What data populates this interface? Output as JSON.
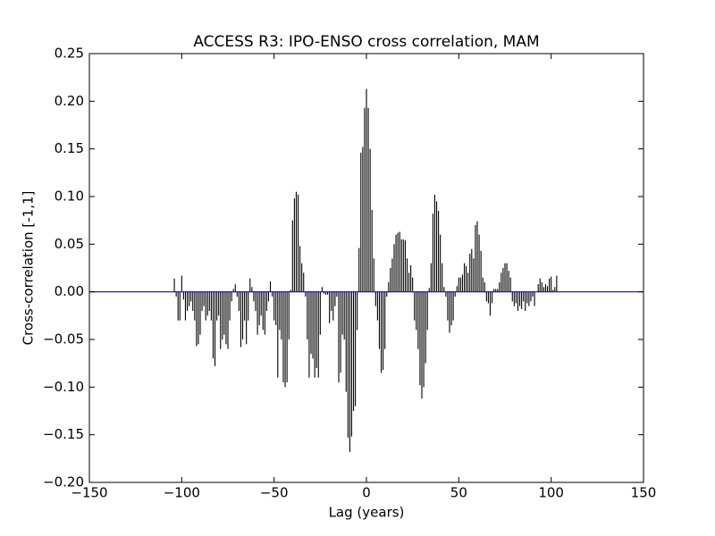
{
  "chart_data": {
    "type": "xcorr",
    "title": "ACCESS R3: IPO-ENSO cross correlation, MAM",
    "x_label": "Lag (years)",
    "y_label": "Cross-correlation [-1,1]",
    "x": [
      -104,
      -103,
      -102,
      -101,
      -100,
      -99,
      -98,
      -97,
      -96,
      -95,
      -94,
      -93,
      -92,
      -91,
      -90,
      -89,
      -88,
      -87,
      -86,
      -85,
      -84,
      -83,
      -82,
      -81,
      -80,
      -79,
      -78,
      -77,
      -76,
      -75,
      -74,
      -73,
      -72,
      -71,
      -70,
      -69,
      -68,
      -67,
      -66,
      -65,
      -64,
      -63,
      -62,
      -61,
      -60,
      -59,
      -58,
      -57,
      -56,
      -55,
      -54,
      -53,
      -52,
      -51,
      -50,
      -49,
      -48,
      -47,
      -46,
      -45,
      -44,
      -43,
      -42,
      -41,
      -40,
      -39,
      -38,
      -37,
      -36,
      -35,
      -34,
      -33,
      -32,
      -31,
      -30,
      -29,
      -28,
      -27,
      -26,
      -25,
      -24,
      -23,
      -22,
      -21,
      -20,
      -19,
      -18,
      -17,
      -16,
      -15,
      -14,
      -13,
      -12,
      -11,
      -10,
      -9,
      -8,
      -7,
      -6,
      -5,
      -4,
      -3,
      -2,
      -1,
      0,
      1,
      2,
      3,
      4,
      5,
      6,
      7,
      8,
      9,
      10,
      11,
      12,
      13,
      14,
      15,
      16,
      17,
      18,
      19,
      20,
      21,
      22,
      23,
      24,
      25,
      26,
      27,
      28,
      29,
      30,
      31,
      32,
      33,
      34,
      35,
      36,
      37,
      38,
      39,
      40,
      41,
      42,
      43,
      44,
      45,
      46,
      47,
      48,
      49,
      50,
      51,
      52,
      53,
      54,
      55,
      56,
      57,
      58,
      59,
      60,
      61,
      62,
      63,
      64,
      65,
      66,
      67,
      68,
      69,
      70,
      71,
      72,
      73,
      74,
      75,
      76,
      77,
      78,
      79,
      80,
      81,
      82,
      83,
      84,
      85,
      86,
      87,
      88,
      89,
      90,
      91,
      92,
      93,
      94,
      95,
      96,
      97,
      98,
      99,
      100,
      101,
      102,
      103
    ],
    "values": [
      0.014,
      -0.005,
      -0.03,
      -0.03,
      0.017,
      -0.008,
      -0.03,
      -0.02,
      -0.015,
      -0.01,
      -0.02,
      -0.03,
      -0.057,
      -0.055,
      -0.045,
      -0.02,
      -0.015,
      -0.03,
      -0.025,
      -0.02,
      -0.03,
      -0.07,
      -0.078,
      -0.03,
      -0.025,
      -0.06,
      -0.05,
      -0.045,
      -0.055,
      -0.06,
      -0.03,
      -0.01,
      0.003,
      0.008,
      -0.005,
      -0.02,
      -0.058,
      -0.05,
      -0.03,
      -0.055,
      -0.03,
      0.014,
      0.005,
      -0.01,
      -0.02,
      -0.045,
      -0.035,
      -0.025,
      -0.04,
      -0.045,
      -0.02,
      -0.01,
      0.011,
      -0.005,
      -0.03,
      -0.035,
      -0.09,
      -0.04,
      -0.05,
      -0.095,
      -0.1,
      -0.095,
      -0.05,
      0.002,
      0.075,
      0.098,
      0.105,
      0.102,
      0.048,
      0.03,
      0.02,
      -0.005,
      -0.05,
      -0.09,
      -0.065,
      -0.07,
      -0.09,
      -0.08,
      -0.09,
      -0.045,
      0.005,
      -0.002,
      -0.003,
      -0.003,
      -0.033,
      -0.02,
      -0.03,
      -0.015,
      -0.005,
      -0.095,
      -0.085,
      -0.045,
      -0.05,
      -0.105,
      -0.153,
      -0.168,
      -0.152,
      -0.125,
      -0.12,
      -0.04,
      0.046,
      0.146,
      0.152,
      0.193,
      0.213,
      0.193,
      0.15,
      0.086,
      0.035,
      -0.015,
      -0.03,
      -0.06,
      -0.085,
      -0.082,
      -0.06,
      -0.005,
      0.01,
      0.025,
      0.035,
      0.05,
      0.06,
      0.062,
      0.063,
      0.055,
      0.055,
      0.054,
      0.035,
      0.02,
      0.028,
      0.015,
      -0.03,
      -0.04,
      -0.06,
      -0.098,
      -0.112,
      -0.1,
      -0.075,
      -0.04,
      0.004,
      0.03,
      0.082,
      0.102,
      0.095,
      0.085,
      0.06,
      0.03,
      0.005,
      -0.005,
      -0.03,
      -0.043,
      -0.035,
      -0.03,
      -0.005,
      0.006,
      0.015,
      0.015,
      0.018,
      0.03,
      0.027,
      0.02,
      0.04,
      0.045,
      0.035,
      0.07,
      0.074,
      0.06,
      0.043,
      0.015,
      0.01,
      -0.01,
      -0.012,
      -0.025,
      -0.012,
      0.003,
      0.003,
      0.003,
      0.01,
      0.02,
      0.025,
      0.03,
      0.03,
      0.022,
      0.015,
      -0.01,
      -0.015,
      -0.012,
      -0.02,
      -0.015,
      -0.018,
      -0.01,
      -0.02,
      -0.012,
      -0.015,
      -0.01,
      -0.005,
      -0.015,
      0.0,
      0.008,
      0.014,
      0.01,
      0.005,
      0.008,
      0.006,
      0.014,
      0.016,
      0.002,
      0.005,
      0.017
    ],
    "color": "#000000",
    "baseline_color": "#0000ff",
    "xlim": [
      -150,
      150
    ],
    "ylim": [
      -0.2,
      0.25
    ],
    "xticks": [
      {
        "value": -150,
        "label": "−150"
      },
      {
        "value": -100,
        "label": "−100"
      },
      {
        "value": -50,
        "label": "−50"
      },
      0,
      50,
      100,
      150
    ],
    "yticks": [
      {
        "value": -0.2,
        "label": "−0.20"
      },
      {
        "value": -0.15,
        "label": "−0.15"
      },
      {
        "value": -0.1,
        "label": "−0.10"
      },
      {
        "value": -0.05,
        "label": "−0.05"
      },
      {
        "value": 0,
        "label": "0.00"
      },
      0.05,
      {
        "value": 0.1,
        "label": "0.10"
      },
      0.15,
      {
        "value": 0.2,
        "label": "0.20"
      },
      0.25
    ],
    "grid": false
  }
}
